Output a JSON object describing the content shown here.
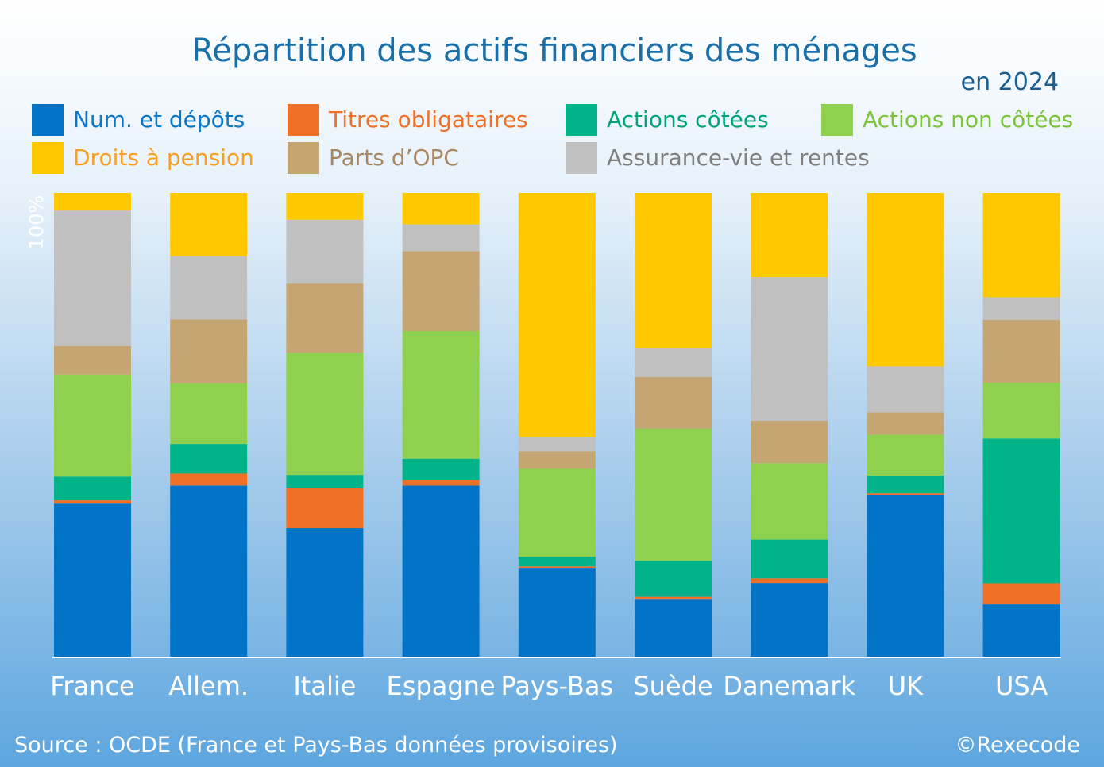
{
  "chart_data": {
    "type": "bar",
    "stacked": true,
    "title": "Répartition des actifs financiers des ménages",
    "subtitle": "en 2024",
    "ylabel": "100%",
    "ylim": [
      0,
      100
    ],
    "categories": [
      "France",
      "Allem.",
      "Italie",
      "Espagne",
      "Pays-Bas",
      "Suède",
      "Danemark",
      "UK",
      "USA"
    ],
    "series": [
      {
        "name": "Num. et dépôts",
        "color": "#0274c8",
        "label_color": "#0a78c9",
        "values": [
          33.3,
          37.2,
          28.0,
          37.2,
          19.4,
          12.5,
          16.2,
          35.2,
          11.5
        ]
      },
      {
        "name": "Titres obligataires",
        "color": "#f07026",
        "label_color": "#f07026",
        "values": [
          0.7,
          2.6,
          8.6,
          1.2,
          0.3,
          0.6,
          1.0,
          0.4,
          4.6
        ]
      },
      {
        "name": "Actions côtées",
        "color": "#00b388",
        "label_color": "#00a37a",
        "values": [
          5.1,
          6.4,
          2.9,
          4.6,
          2.1,
          7.8,
          8.4,
          3.8,
          31.3
        ]
      },
      {
        "name": "Actions non côtées",
        "color": "#8fd14f",
        "label_color": "#7dc33c",
        "values": [
          22.1,
          13.1,
          26.4,
          27.6,
          19.0,
          28.6,
          16.6,
          8.9,
          12.1
        ]
      },
      {
        "name": "Parts d’OPC",
        "color": "#c5a672",
        "label_color": "#a88863",
        "values": [
          6.2,
          13.8,
          15.0,
          17.3,
          3.8,
          11.1,
          9.2,
          4.8,
          13.6
        ]
      },
      {
        "name": "Assurance-vie et rentes",
        "color": "#c0c0c0",
        "label_color": "#808080",
        "values": [
          29.3,
          13.7,
          13.8,
          5.8,
          3.1,
          6.3,
          31.2,
          10.0,
          4.9
        ]
      },
      {
        "name": "Droits à pension",
        "color": "#ffc800",
        "label_color": "#f7a024",
        "values": [
          3.8,
          13.7,
          5.8,
          6.8,
          52.8,
          33.5,
          18.3,
          37.6,
          22.6
        ]
      }
    ]
  },
  "footer": {
    "source": "Source : OCDE (France et Pays-Bas données provisoires)",
    "copyright": "©Rexecode"
  }
}
